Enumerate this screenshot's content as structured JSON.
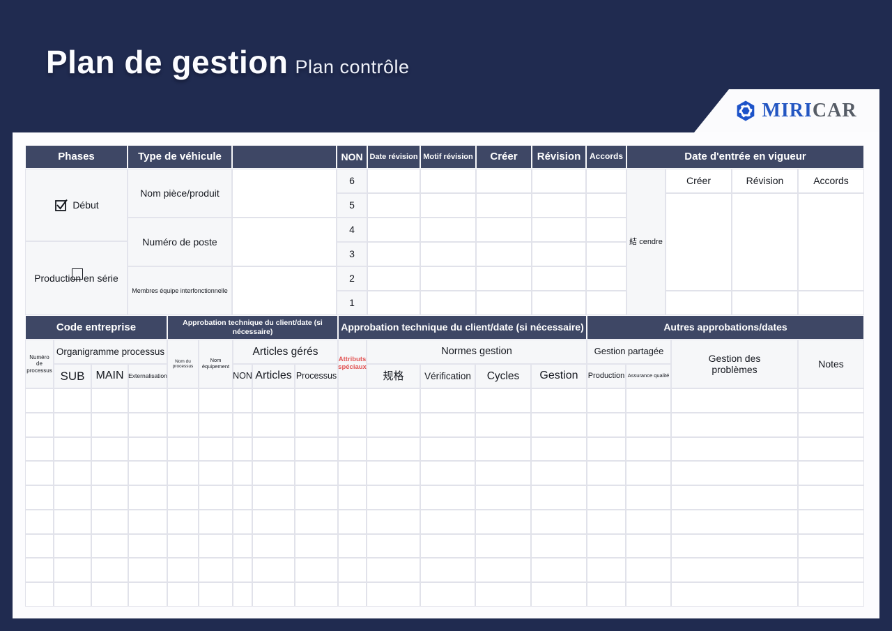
{
  "header": {
    "title": "Plan de gestion",
    "subtitle": "Plan contrôle",
    "logo": {
      "primary": "MIRI",
      "secondary": "CAR"
    }
  },
  "top_table": {
    "columns": {
      "phases": "Phases",
      "vehicle_type": "Type de véhicule",
      "non": "NON",
      "date_revision": "Date révision",
      "motif_revision": "Motif révision",
      "creer": "Créer",
      "revision": "Révision",
      "accords": "Accords",
      "effective_date": "Date d'entrée en vigueur"
    },
    "phases": {
      "debut": "Début",
      "production_serie": "Production en série"
    },
    "vehicle_rows": {
      "part_name": "Nom pièce/produit",
      "station_number": "Numéro de poste",
      "team_members": "Membres équipe interfonctionnelle"
    },
    "revision_numbers": [
      "6",
      "5",
      "4",
      "3",
      "2",
      "1"
    ],
    "side_note": "結 cendre",
    "effective_sub": {
      "creer": "Créer",
      "revision": "Révision",
      "accords": "Accords"
    }
  },
  "bottom_table": {
    "columns": {
      "company_code": "Code entreprise",
      "client_approval_small": "Approbation technique du client/date (si nécessaire)",
      "client_approval_large": "Approbation technique du client/date (si nécessaire)",
      "other_approvals": "Autres approbations/dates"
    },
    "sub": {
      "process_number": "Numéro de processus",
      "org_process": "Organigramme processus",
      "sub": "SUB",
      "main": "MAIN",
      "externalisation": "Externalisation",
      "process_name": "Nom du processus",
      "equipment_name": "Nom équipement",
      "managed_items": "Articles gérés",
      "non": "NON",
      "articles": "Articles",
      "processus": "Processus",
      "special_attributes": "Attributs spéciaux",
      "management_standards": "Normes gestion",
      "spec": "规格",
      "verification": "Vérification",
      "cycles": "Cycles",
      "gestion": "Gestion",
      "shared_management": "Gestion partagée",
      "production": "Production",
      "quality_assurance": "Assurance qualité",
      "problem_management": "Gestion des problèmes",
      "notes": "Notes"
    }
  },
  "colors": {
    "page_bg": "#202b50",
    "header_cell_bg": "#3e4765",
    "accent_red": "#e25555",
    "logo_blue": "#1d53c9",
    "logo_gray": "#565c66"
  }
}
